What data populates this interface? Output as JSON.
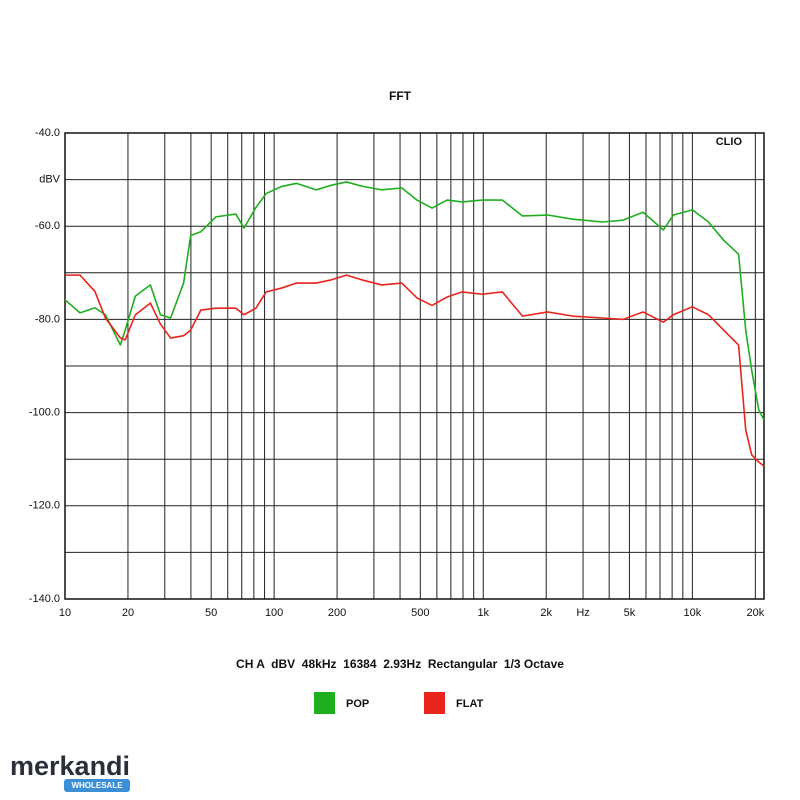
{
  "chart_data": {
    "type": "line",
    "title": "FFT",
    "annotation": "CLIO",
    "x_label": "Hz",
    "footer": "CH A  dBV  48kHz  16384  2.93Hz  Rectangular  1/3 Octave",
    "xscale": "log",
    "grid": true,
    "xlim": [
      10,
      22000
    ],
    "xticks": [
      10,
      20,
      50,
      100,
      200,
      500,
      {
        "value": 1000,
        "label": "1k"
      },
      {
        "value": 2000,
        "label": "2k"
      },
      {
        "value": 5000,
        "label": "5k"
      },
      {
        "value": 10000,
        "label": "10k"
      },
      {
        "value": 20000,
        "label": "20k"
      }
    ],
    "xminor": [
      30,
      40,
      60,
      70,
      80,
      90,
      300,
      400,
      600,
      700,
      800,
      900,
      3000,
      4000,
      6000,
      7000,
      8000,
      9000
    ],
    "ylim": [
      -140,
      -40
    ],
    "yticks": [
      {
        "value": -40,
        "label": "-40.0"
      },
      {
        "value": -50,
        "label": "dBV"
      },
      {
        "value": -60,
        "label": "-60.0"
      },
      {
        "value": -80,
        "label": "-80.0"
      },
      {
        "value": -100,
        "label": "-100.0"
      },
      {
        "value": -120,
        "label": "-120.0"
      },
      {
        "value": -140,
        "label": "-140.0"
      }
    ],
    "yminor": [
      -70,
      -90,
      -110,
      -130
    ],
    "x": [
      10,
      11.8,
      13.9,
      15.6,
      18.4,
      19.4,
      21.7,
      25.6,
      28.6,
      32,
      36.9,
      39.9,
      44.6,
      52.6,
      65.6,
      71.8,
      81.8,
      91.6,
      108,
      128,
      159,
      188,
      222,
      262,
      327,
      408,
      482,
      569,
      671,
      793,
      989,
      1234,
      1540,
      2032,
      2680,
      3736,
      4660,
      5810,
      7260,
      8110,
      10000,
      11940,
      14100,
      16630,
      17990,
      19230,
      20770,
      22000
    ],
    "series": [
      {
        "name": "POP",
        "color": "#1fae1f",
        "values": [
          -75.8,
          -78.6,
          -77.5,
          -79,
          -85.5,
          -82.3,
          -75,
          -72.6,
          -79,
          -79.7,
          -72.2,
          -62,
          -61.2,
          -58,
          -57.4,
          -60.4,
          -56,
          -53,
          -51.5,
          -50.8,
          -52.2,
          -51.2,
          -50.5,
          -51.4,
          -52.2,
          -51.8,
          -54.4,
          -56.1,
          -54.4,
          -54.8,
          -54.4,
          -54.4,
          -57.8,
          -57.6,
          -58.5,
          -59.1,
          -58.7,
          -57,
          -60.8,
          -57.6,
          -56.5,
          -59.1,
          -63,
          -66,
          -82.3,
          -91,
          -99.4,
          -101.6
        ]
      },
      {
        "name": "FLAT",
        "color": "#e8241c",
        "values": [
          -70.5,
          -70.5,
          -74,
          -79.7,
          -84,
          -84.4,
          -79,
          -76.5,
          -81,
          -84,
          -83.5,
          -82.3,
          -78,
          -77.6,
          -77.6,
          -79,
          -77.6,
          -74.1,
          -73.3,
          -72.2,
          -72.2,
          -71.5,
          -70.5,
          -71.5,
          -72.6,
          -72.2,
          -75.4,
          -77,
          -75.2,
          -74.1,
          -74.6,
          -74.1,
          -79.3,
          -78.4,
          -79.3,
          -79.7,
          -80,
          -78.4,
          -80.6,
          -79,
          -77.3,
          -79,
          -82.3,
          -85.5,
          -103.7,
          -109.1,
          -110.6,
          -111.5
        ]
      }
    ]
  },
  "watermark": {
    "brand": "merkandi",
    "tag": "WHOLESALE"
  }
}
